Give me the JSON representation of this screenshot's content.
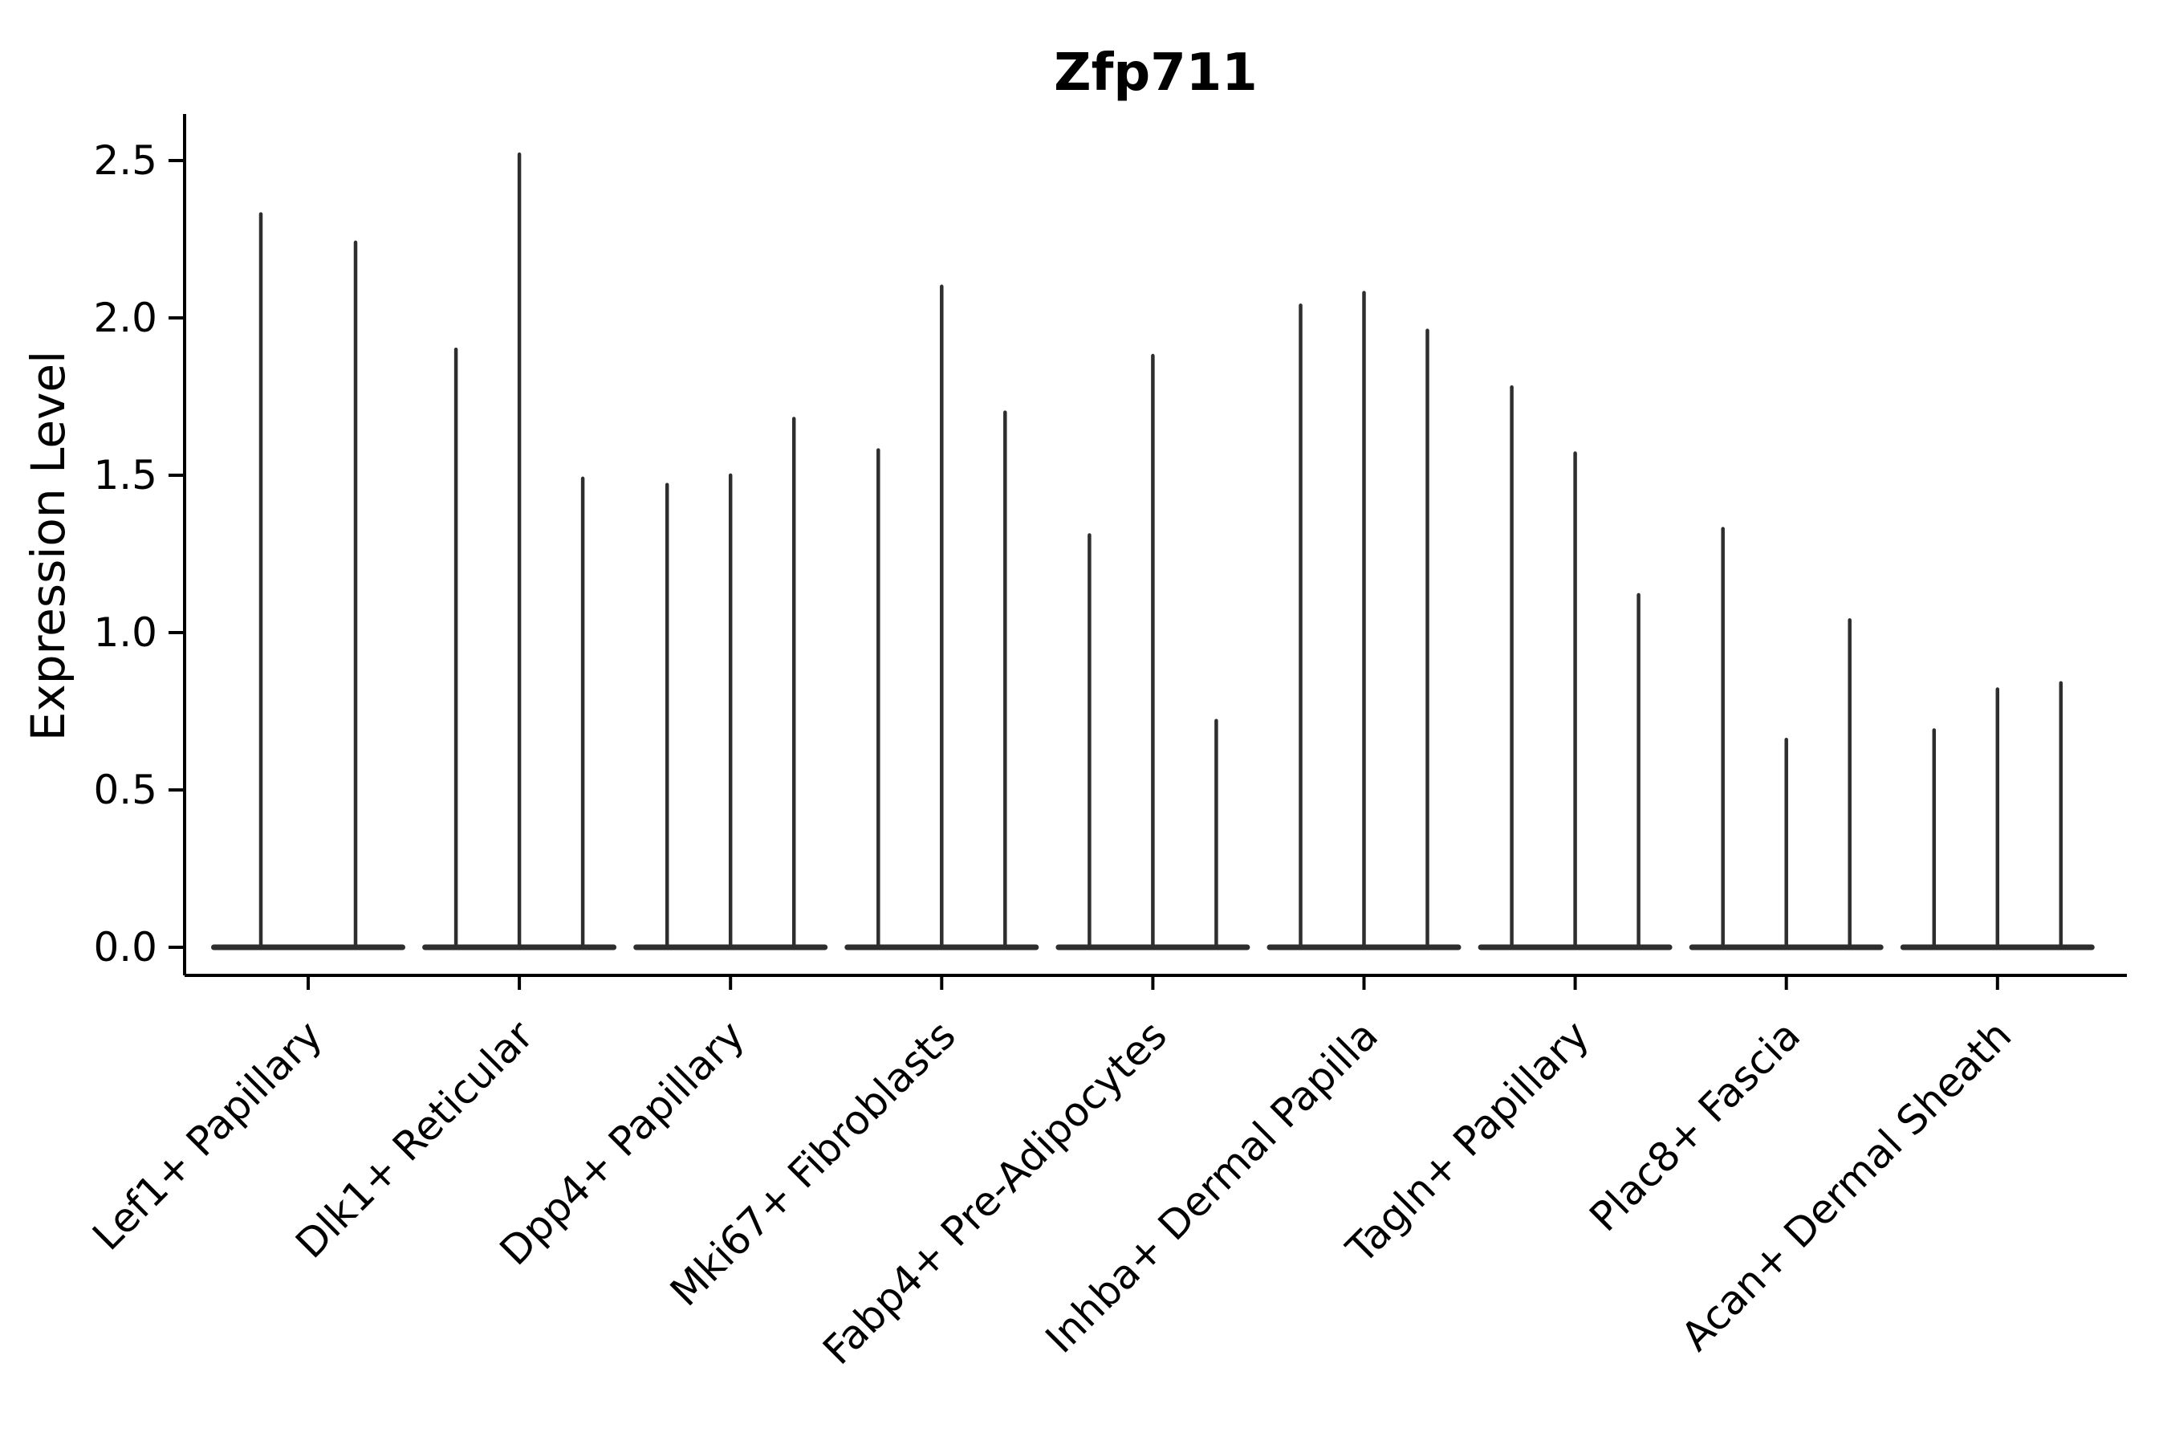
{
  "title": "Zfp711",
  "colors": {
    "text": "#000000",
    "axis": "#000000",
    "violin": "#2e2e2e",
    "background": "#ffffff"
  },
  "chart_data": {
    "type": "violin",
    "title": "Zfp711",
    "ylabel": "Expression Level",
    "xlabel": "",
    "ylim": [
      -0.09,
      2.74
    ],
    "yticks": [
      0,
      0.5,
      1,
      1.5,
      2,
      2.5
    ],
    "ytick_labels": [
      "0.0",
      "0.5",
      "1.0",
      "1.5",
      "2.0",
      "2.5"
    ],
    "grid": false,
    "legend": "none",
    "x_tick_rotation": 45,
    "style": "needle-thin violins: flat pancake base at 0 with hair-thin spikes rising to each violin's max expression value",
    "categories": [
      "Lef1+ Papillary",
      "Dlk1+ Reticular",
      "Dpp4+ Papillary",
      "Mki67+ Fibroblasts",
      "Fabp4+ Pre-Adipocytes",
      "Inhba+ Dermal Papilla",
      "Tagln+ Papillary",
      "Plac8+ Fascia",
      "Acan+ Dermal Sheath"
    ],
    "groups": [
      {
        "label": "Lef1+ Papillary",
        "violins": 2,
        "max_values": [
          2.33,
          2.24
        ]
      },
      {
        "label": "Dlk1+ Reticular",
        "violins": 3,
        "max_values": [
          1.9,
          2.52,
          1.49
        ]
      },
      {
        "label": "Dpp4+ Papillary",
        "violins": 3,
        "max_values": [
          1.47,
          1.5,
          1.68
        ]
      },
      {
        "label": "Mki67+ Fibroblasts",
        "violins": 3,
        "max_values": [
          1.58,
          2.1,
          1.7
        ]
      },
      {
        "label": "Fabp4+ Pre-Adipocytes",
        "violins": 3,
        "max_values": [
          1.31,
          1.88,
          0.72
        ]
      },
      {
        "label": "Inhba+ Dermal Papilla",
        "violins": 3,
        "max_values": [
          2.04,
          2.08,
          1.96
        ]
      },
      {
        "label": "Tagln+ Papillary",
        "violins": 3,
        "max_values": [
          1.78,
          1.57,
          1.12
        ]
      },
      {
        "label": "Plac8+ Fascia",
        "violins": 3,
        "max_values": [
          1.33,
          0.66,
          1.04
        ]
      },
      {
        "label": "Acan+ Dermal Sheath",
        "violins": 3,
        "max_values": [
          0.69,
          0.82,
          0.84
        ]
      }
    ]
  }
}
